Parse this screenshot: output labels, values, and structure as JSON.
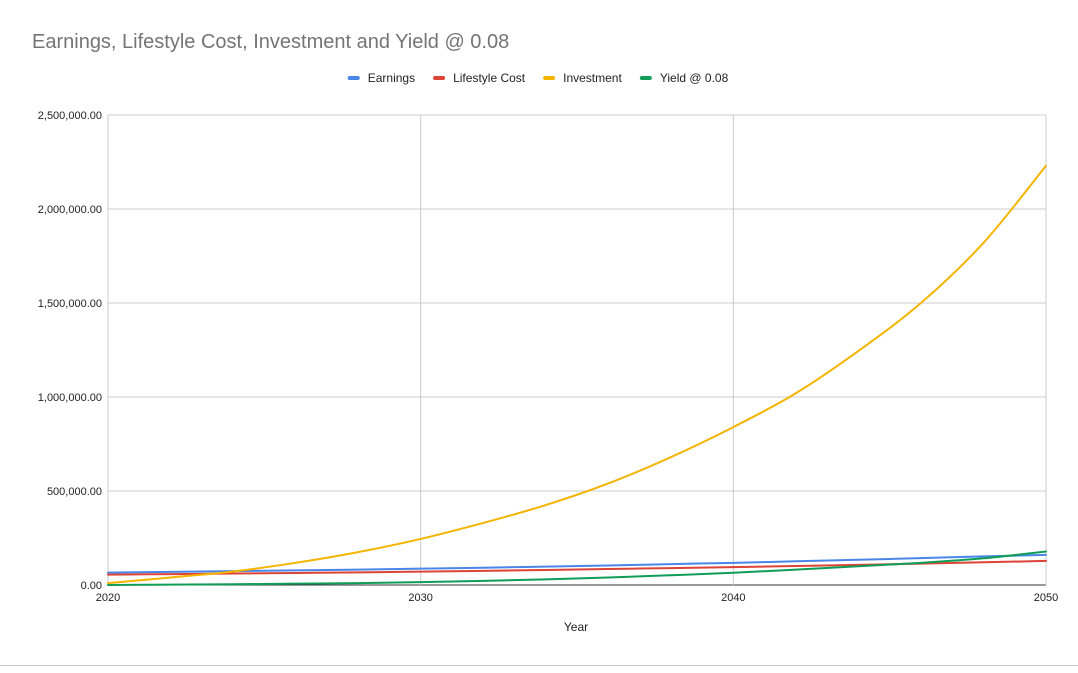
{
  "chart_data": {
    "type": "line",
    "title": "Earnings, Lifestyle Cost, Investment and Yield @ 0.08",
    "xlabel": "Year",
    "ylabel": "",
    "xlim": [
      2020,
      2050
    ],
    "ylim": [
      0,
      2500000
    ],
    "x_ticks": [
      "2020",
      "2030",
      "2040",
      "2050"
    ],
    "y_ticks": [
      "0.00",
      "500,000.00",
      "1,000,000.00",
      "1,500,000.00",
      "2,000,000.00",
      "2,500,000.00"
    ],
    "legend_position": "top-center",
    "grid": true,
    "x": [
      2020,
      2022,
      2024,
      2026,
      2028,
      2030,
      2032,
      2034,
      2036,
      2038,
      2040,
      2042,
      2044,
      2046,
      2048,
      2050
    ],
    "series": [
      {
        "name": "Earnings",
        "color": "#4a86e8",
        "values": [
          66000,
          70000,
          74000,
          78000,
          82000,
          87000,
          92000,
          98000,
          104000,
          111000,
          118000,
          126000,
          134000,
          143000,
          152000,
          160000
        ]
      },
      {
        "name": "Lifestyle Cost",
        "color": "#db4437",
        "values": [
          55000,
          58000,
          61000,
          64000,
          67000,
          71000,
          75000,
          80000,
          85000,
          90000,
          95000,
          101000,
          107000,
          114000,
          121000,
          128000
        ]
      },
      {
        "name": "Investment",
        "color": "#f4b400",
        "values": [
          10000,
          40000,
          72000,
          118000,
          175000,
          245000,
          330000,
          425000,
          540000,
          680000,
          840000,
          1020000,
          1245000,
          1500000,
          1820000,
          2230000
        ]
      },
      {
        "name": "Yield @ 0.08",
        "color": "#0f9d58",
        "values": [
          0,
          2000,
          4000,
          7000,
          10000,
          15000,
          22000,
          30000,
          40000,
          52000,
          65000,
          82000,
          100000,
          118000,
          142000,
          178000
        ]
      }
    ]
  }
}
